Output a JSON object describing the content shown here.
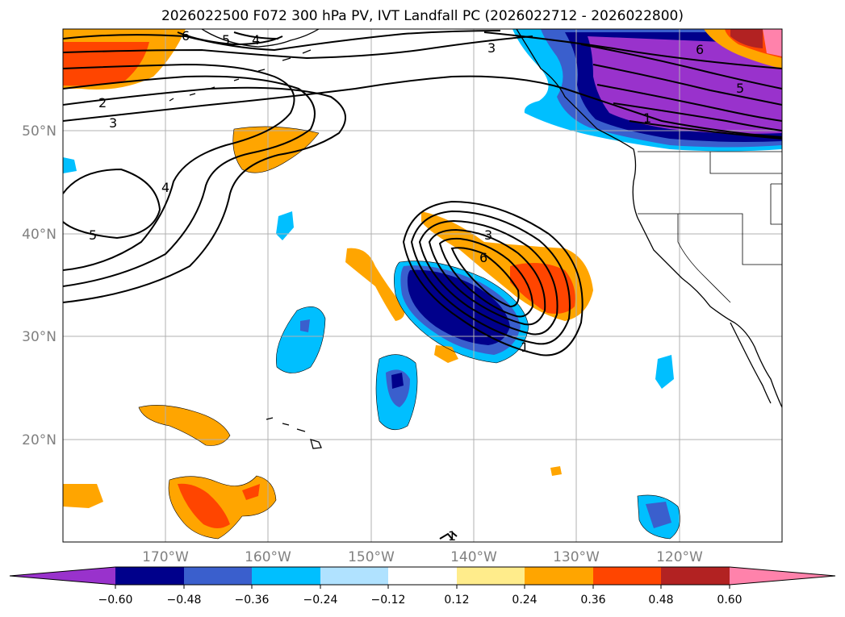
{
  "title": "2026022500 F072 300 hPa PV, IVT Landfall PC (2026022712 - 2026022800)",
  "longitude_labels": [
    "170°W",
    "160°W",
    "150°W",
    "140°W",
    "130°W",
    "120°W"
  ],
  "latitude_labels": [
    "50°N",
    "40°N",
    "30°N",
    "20°N"
  ],
  "colorbar": {
    "ticks": [
      "−0.60",
      "−0.48",
      "−0.36",
      "−0.24",
      "−0.12",
      "0.12",
      "0.24",
      "0.36",
      "0.48",
      "0.60"
    ],
    "colors": [
      "#9932CC",
      "#00008B",
      "#3A5FCD",
      "#00BFFF",
      "#B0E2FF",
      "#FFFFFF",
      "#FFEC8B",
      "#FFA500",
      "#FF4500",
      "#B22222",
      "#FF82AB"
    ]
  },
  "contour_labels": {
    "w1": "2",
    "w2": "3",
    "w3": "5",
    "w4": "4",
    "n1": "6",
    "n2": "5",
    "n3": "4",
    "c1": "3",
    "c2": "6",
    "c3": "1",
    "ne1": "3",
    "ne2": "6",
    "ne3": "5",
    "ne4": "1",
    "s1": "1"
  }
}
